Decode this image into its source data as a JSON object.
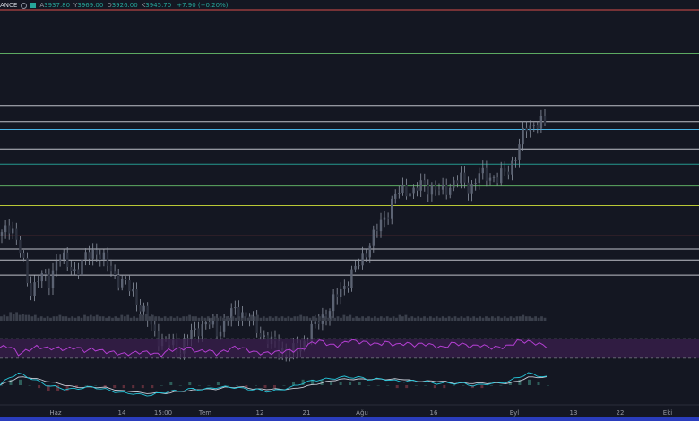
{
  "legend": {
    "symbol": "BINANCE",
    "symbol_visible": "ANCE",
    "open_label": "A",
    "open": "3937.80",
    "high_label": "Y",
    "high": "3969.00",
    "low_label": "D",
    "low": "3926.00",
    "close_label": "K",
    "close": "3945.70",
    "change": "+7.90 (+0.20%)"
  },
  "colors": {
    "background": "#141722",
    "up": "#26a69a",
    "down": "#ef5350",
    "candle_wick": "#8b93a1",
    "rsi_line": "#b33fd1",
    "rsi_band": "#3a1f4d",
    "macd_line": "#2962ff",
    "signal_line": "#ff9800"
  },
  "chart_data": [
    {
      "type": "candlestick",
      "x_ticks": [
        "Haz",
        "14",
        "15:00",
        "Tem",
        "12",
        "21",
        "Ağu",
        "16",
        "Eyl",
        "13",
        "22",
        "Eki"
      ],
      "close_series": [
        3690,
        3720,
        3650,
        3560,
        3600,
        3580,
        3650,
        3620,
        3610,
        3640,
        3660,
        3630,
        3600,
        3580,
        3560,
        3520,
        3480,
        3450,
        3440,
        3430,
        3460,
        3480,
        3490,
        3470,
        3500,
        3520,
        3510,
        3480,
        3460,
        3440,
        3430,
        3420,
        3440,
        3470,
        3500,
        3520,
        3560,
        3590,
        3620,
        3660,
        3700,
        3740,
        3780,
        3800,
        3790,
        3810,
        3800,
        3790,
        3810,
        3820,
        3800,
        3830,
        3830,
        3820,
        3840,
        3880,
        3940,
        3950,
        3945
      ],
      "horizontal_levels": [
        {
          "price": 4210,
          "color": "#ef5350"
        },
        {
          "price": 4110,
          "color": "#66bb6a"
        },
        {
          "price": 3990,
          "color": "#d1d4dc"
        },
        {
          "price": 3953,
          "color": "#d1d4dc"
        },
        {
          "price": 3935,
          "color": "#4fc3f7"
        },
        {
          "price": 3890,
          "color": "#d1d4dc"
        },
        {
          "price": 3855,
          "color": "#26a69a"
        },
        {
          "price": 3805,
          "color": "#66bb6a"
        },
        {
          "price": 3760,
          "color": "#cddc39"
        },
        {
          "price": 3690,
          "color": "#ef5350"
        },
        {
          "price": 3660,
          "color": "#d1d4dc"
        },
        {
          "price": 3635,
          "color": "#d1d4dc"
        },
        {
          "price": 3600,
          "color": "#d1d4dc"
        }
      ]
    },
    {
      "type": "bar",
      "name": "volume",
      "values": [
        3,
        5,
        4,
        3,
        2,
        2,
        3,
        2,
        2,
        3,
        3,
        2,
        2,
        3,
        2,
        4,
        3,
        2,
        2,
        2,
        3,
        2,
        2,
        2,
        2,
        2,
        2,
        3,
        2,
        2,
        2,
        2,
        3,
        2,
        2,
        2,
        2,
        3,
        2,
        2,
        2,
        2,
        2,
        3,
        2,
        2,
        2,
        2,
        2,
        2,
        2,
        2,
        2,
        2,
        2,
        2,
        3,
        2,
        2
      ]
    },
    {
      "type": "line",
      "name": "rsi",
      "upper": 70,
      "lower": 30,
      "values": [
        52,
        55,
        38,
        47,
        54,
        50,
        51,
        48,
        53,
        45,
        49,
        44,
        42,
        38,
        40,
        43,
        41,
        36,
        47,
        49,
        52,
        43,
        47,
        39,
        46,
        53,
        49,
        42,
        40,
        42,
        44,
        46,
        48,
        61,
        66,
        57,
        56,
        67,
        64,
        62,
        58,
        63,
        57,
        61,
        57,
        60,
        56,
        51,
        61,
        59,
        54,
        57,
        52,
        52,
        55,
        66,
        64,
        60,
        55
      ]
    },
    {
      "type": "line",
      "name": "macd",
      "macd": [
        0,
        4,
        6,
        4,
        2,
        0,
        -1,
        -2,
        -2,
        -1,
        -1,
        -2,
        -3,
        -4,
        -4,
        -5,
        -5,
        -4,
        -3,
        -3,
        -2,
        -2,
        -2,
        -1,
        -1,
        -1,
        -2,
        -2,
        -3,
        -3,
        -2,
        -1,
        1,
        2,
        3,
        3,
        4,
        4,
        4,
        3,
        3,
        3,
        2,
        2,
        2,
        2,
        1,
        1,
        1,
        1,
        0,
        0,
        1,
        1,
        2,
        4,
        6,
        5,
        4
      ],
      "signal": [
        0,
        2,
        4,
        4,
        3,
        2,
        1,
        0,
        -1,
        -1,
        -1,
        -1,
        -2,
        -3,
        -3,
        -4,
        -4,
        -4,
        -4,
        -3,
        -3,
        -2,
        -2,
        -2,
        -1,
        -1,
        -1,
        -2,
        -2,
        -2,
        -2,
        -2,
        -1,
        0,
        1,
        2,
        3,
        3,
        3,
        3,
        3,
        3,
        3,
        3,
        2,
        2,
        2,
        2,
        1,
        1,
        1,
        1,
        1,
        1,
        1,
        2,
        4,
        4,
        4
      ]
    }
  ]
}
